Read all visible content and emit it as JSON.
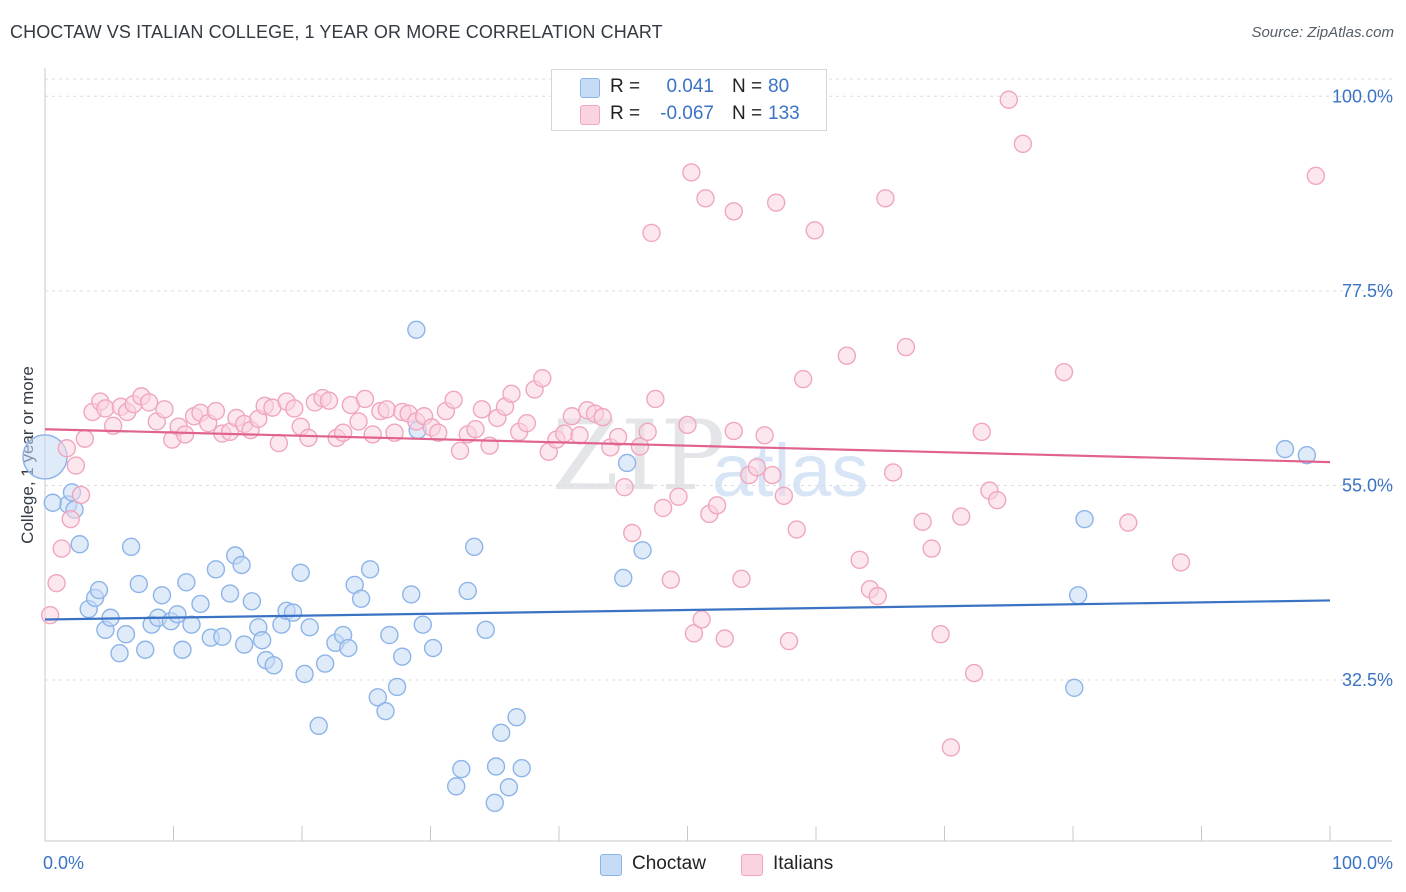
{
  "title": "CHOCTAW VS ITALIAN COLLEGE, 1 YEAR OR MORE CORRELATION CHART",
  "source": "Source: ZipAtlas.com",
  "watermark": {
    "zip": "ZIP",
    "atlas": "atlas"
  },
  "legend": {
    "rows": [
      {
        "r_label": "R =",
        "r_value": "0.041",
        "n_label": "N =",
        "n_value": "80",
        "color": "#8db4e8",
        "fill": "#c6dbf5"
      },
      {
        "r_label": "R =",
        "r_value": "-0.067",
        "n_label": "N =",
        "n_value": "133",
        "color": "#f0a6bf",
        "fill": "#f9d3e0"
      }
    ]
  },
  "bottom_legend": [
    {
      "label": "Choctaw",
      "color": "#8db4e8",
      "fill": "#c6dbf5"
    },
    {
      "label": "Italians",
      "color": "#f0a6bf",
      "fill": "#f9d3e0"
    }
  ],
  "chart_data": {
    "type": "scatter",
    "title": "CHOCTAW VS ITALIAN COLLEGE, 1 YEAR OR MORE CORRELATION CHART",
    "xlabel": "",
    "ylabel": "College, 1 year or more",
    "xlim": [
      0,
      100
    ],
    "ylim": [
      14.0,
      102.0
    ],
    "x_tick_labels": [
      "0.0%",
      "100.0%"
    ],
    "y_ticks": [
      32.5,
      55.0,
      77.5,
      100.0
    ],
    "y_tick_labels": [
      "32.5%",
      "55.0%",
      "77.5%",
      "100.0%"
    ],
    "grid": true,
    "legend_position": "top-center",
    "series": [
      {
        "name": "Choctaw",
        "color": "#3b73c4",
        "marker_stroke": "#8db4e8",
        "marker_fill": "#c6dbf5",
        "trend": {
          "x": [
            0,
            100
          ],
          "y": [
            39.5,
            41.7
          ]
        },
        "points": [
          [
            0.0,
            58.3
          ],
          [
            1.8,
            52.8
          ],
          [
            2.1,
            54.2
          ],
          [
            2.3,
            52.2
          ],
          [
            2.7,
            48.2
          ],
          [
            3.4,
            40.7
          ],
          [
            3.9,
            42.0
          ],
          [
            4.2,
            42.9
          ],
          [
            4.7,
            38.3
          ],
          [
            5.1,
            39.7
          ],
          [
            5.8,
            35.6
          ],
          [
            6.3,
            37.8
          ],
          [
            6.7,
            47.9
          ],
          [
            7.3,
            43.6
          ],
          [
            7.8,
            36.0
          ],
          [
            8.3,
            38.9
          ],
          [
            8.8,
            39.7
          ],
          [
            9.1,
            42.3
          ],
          [
            9.8,
            39.3
          ],
          [
            10.3,
            40.1
          ],
          [
            10.7,
            36.0
          ],
          [
            11.0,
            43.8
          ],
          [
            11.4,
            38.9
          ],
          [
            12.1,
            41.3
          ],
          [
            12.9,
            37.4
          ],
          [
            13.3,
            45.3
          ],
          [
            13.8,
            37.5
          ],
          [
            14.4,
            42.5
          ],
          [
            14.8,
            46.9
          ],
          [
            15.3,
            45.8
          ],
          [
            15.5,
            36.6
          ],
          [
            16.1,
            41.6
          ],
          [
            16.6,
            38.6
          ],
          [
            16.9,
            37.1
          ],
          [
            17.2,
            34.8
          ],
          [
            17.8,
            34.2
          ],
          [
            18.4,
            38.9
          ],
          [
            18.8,
            40.5
          ],
          [
            19.3,
            40.3
          ],
          [
            19.9,
            44.9
          ],
          [
            20.2,
            33.2
          ],
          [
            20.6,
            38.6
          ],
          [
            21.3,
            27.2
          ],
          [
            21.8,
            34.4
          ],
          [
            22.6,
            36.8
          ],
          [
            23.2,
            37.7
          ],
          [
            23.6,
            36.2
          ],
          [
            24.1,
            43.5
          ],
          [
            24.6,
            41.9
          ],
          [
            25.3,
            45.3
          ],
          [
            25.9,
            30.5
          ],
          [
            26.5,
            28.9
          ],
          [
            26.8,
            37.7
          ],
          [
            27.4,
            31.7
          ],
          [
            27.8,
            35.2
          ],
          [
            28.5,
            42.4
          ],
          [
            29.0,
            61.4
          ],
          [
            29.4,
            38.9
          ],
          [
            30.2,
            36.2
          ],
          [
            28.9,
            73.0
          ],
          [
            32.0,
            20.2
          ],
          [
            32.4,
            22.2
          ],
          [
            32.9,
            42.8
          ],
          [
            33.4,
            47.9
          ],
          [
            34.3,
            38.3
          ],
          [
            35.0,
            18.3
          ],
          [
            35.1,
            22.5
          ],
          [
            35.5,
            26.4
          ],
          [
            36.1,
            20.1
          ],
          [
            36.7,
            28.2
          ],
          [
            37.1,
            22.3
          ],
          [
            45.3,
            57.6
          ],
          [
            45.0,
            44.3
          ],
          [
            46.5,
            47.5
          ],
          [
            80.1,
            31.6
          ],
          [
            80.4,
            42.3
          ],
          [
            80.9,
            51.1
          ],
          [
            96.5,
            59.2
          ],
          [
            98.2,
            58.5
          ],
          [
            0.6,
            53.0
          ]
        ]
      },
      {
        "name": "Italians",
        "color": "#e0628f",
        "marker_stroke": "#f0a6bf",
        "marker_fill": "#f9d3e0",
        "trend": {
          "x": [
            0,
            100
          ],
          "y": [
            61.5,
            57.7
          ]
        },
        "points": [
          [
            0.4,
            40.0
          ],
          [
            0.9,
            43.7
          ],
          [
            1.3,
            47.7
          ],
          [
            1.7,
            59.3
          ],
          [
            2.0,
            51.1
          ],
          [
            2.4,
            57.3
          ],
          [
            2.8,
            53.9
          ],
          [
            3.1,
            60.4
          ],
          [
            3.7,
            63.5
          ],
          [
            4.3,
            64.7
          ],
          [
            4.7,
            63.9
          ],
          [
            5.3,
            61.9
          ],
          [
            5.9,
            64.1
          ],
          [
            6.4,
            63.5
          ],
          [
            6.9,
            64.4
          ],
          [
            7.5,
            65.3
          ],
          [
            8.1,
            64.6
          ],
          [
            8.7,
            62.4
          ],
          [
            9.3,
            63.8
          ],
          [
            9.9,
            60.3
          ],
          [
            10.4,
            61.8
          ],
          [
            10.9,
            60.9
          ],
          [
            11.6,
            63.0
          ],
          [
            12.1,
            63.4
          ],
          [
            12.7,
            62.2
          ],
          [
            13.3,
            63.6
          ],
          [
            13.8,
            61.0
          ],
          [
            14.4,
            61.2
          ],
          [
            14.9,
            62.8
          ],
          [
            15.5,
            62.1
          ],
          [
            16.0,
            61.4
          ],
          [
            16.6,
            62.7
          ],
          [
            17.1,
            64.2
          ],
          [
            17.7,
            64.0
          ],
          [
            18.2,
            59.9
          ],
          [
            18.8,
            64.7
          ],
          [
            19.4,
            63.9
          ],
          [
            19.9,
            61.8
          ],
          [
            20.5,
            60.5
          ],
          [
            21.0,
            64.6
          ],
          [
            21.6,
            65.1
          ],
          [
            22.1,
            64.8
          ],
          [
            22.7,
            60.5
          ],
          [
            23.2,
            61.1
          ],
          [
            23.8,
            64.3
          ],
          [
            24.4,
            62.4
          ],
          [
            24.9,
            65.0
          ],
          [
            25.5,
            60.9
          ],
          [
            26.1,
            63.6
          ],
          [
            26.6,
            63.8
          ],
          [
            27.2,
            61.1
          ],
          [
            27.8,
            63.5
          ],
          [
            28.3,
            63.3
          ],
          [
            28.9,
            62.4
          ],
          [
            29.5,
            63.0
          ],
          [
            30.1,
            61.7
          ],
          [
            30.6,
            61.1
          ],
          [
            31.2,
            63.6
          ],
          [
            31.8,
            64.9
          ],
          [
            32.3,
            59.0
          ],
          [
            32.9,
            60.9
          ],
          [
            33.5,
            61.5
          ],
          [
            34.0,
            63.8
          ],
          [
            34.6,
            59.6
          ],
          [
            35.2,
            62.8
          ],
          [
            35.8,
            64.1
          ],
          [
            36.3,
            65.6
          ],
          [
            36.9,
            61.2
          ],
          [
            37.5,
            62.2
          ],
          [
            38.1,
            66.1
          ],
          [
            38.7,
            67.4
          ],
          [
            39.2,
            58.9
          ],
          [
            39.8,
            60.3
          ],
          [
            40.4,
            61.0
          ],
          [
            41.0,
            63.0
          ],
          [
            41.6,
            60.8
          ],
          [
            42.2,
            63.7
          ],
          [
            42.8,
            63.3
          ],
          [
            43.4,
            62.9
          ],
          [
            44.0,
            59.4
          ],
          [
            44.6,
            60.6
          ],
          [
            45.1,
            54.8
          ],
          [
            45.7,
            49.5
          ],
          [
            46.3,
            59.5
          ],
          [
            46.9,
            61.2
          ],
          [
            47.5,
            65.0
          ],
          [
            48.1,
            52.4
          ],
          [
            48.7,
            44.1
          ],
          [
            49.3,
            53.7
          ],
          [
            50.0,
            62.0
          ],
          [
            50.5,
            37.9
          ],
          [
            51.1,
            39.5
          ],
          [
            51.7,
            51.7
          ],
          [
            52.3,
            52.7
          ],
          [
            52.9,
            37.3
          ],
          [
            53.6,
            61.3
          ],
          [
            54.2,
            44.2
          ],
          [
            54.8,
            56.2
          ],
          [
            55.4,
            57.1
          ],
          [
            56.0,
            60.8
          ],
          [
            56.6,
            56.2
          ],
          [
            57.5,
            53.8
          ],
          [
            57.9,
            37.0
          ],
          [
            58.5,
            49.9
          ],
          [
            59.0,
            67.3
          ],
          [
            47.2,
            84.2
          ],
          [
            50.3,
            91.2
          ],
          [
            51.4,
            88.2
          ],
          [
            53.6,
            86.7
          ],
          [
            56.9,
            87.7
          ],
          [
            59.9,
            84.5
          ],
          [
            62.4,
            70.0
          ],
          [
            63.4,
            46.4
          ],
          [
            64.2,
            43.0
          ],
          [
            64.8,
            42.2
          ],
          [
            65.4,
            88.2
          ],
          [
            66.0,
            56.5
          ],
          [
            67.0,
            71.0
          ],
          [
            68.3,
            50.8
          ],
          [
            69.0,
            47.7
          ],
          [
            69.7,
            37.8
          ],
          [
            70.5,
            24.7
          ],
          [
            71.3,
            51.4
          ],
          [
            72.3,
            33.3
          ],
          [
            72.9,
            61.2
          ],
          [
            73.5,
            54.4
          ],
          [
            74.1,
            53.3
          ],
          [
            75.0,
            99.6
          ],
          [
            76.1,
            94.5
          ],
          [
            79.3,
            68.1
          ],
          [
            84.3,
            50.7
          ],
          [
            88.4,
            46.1
          ],
          [
            98.9,
            90.8
          ]
        ]
      }
    ]
  }
}
